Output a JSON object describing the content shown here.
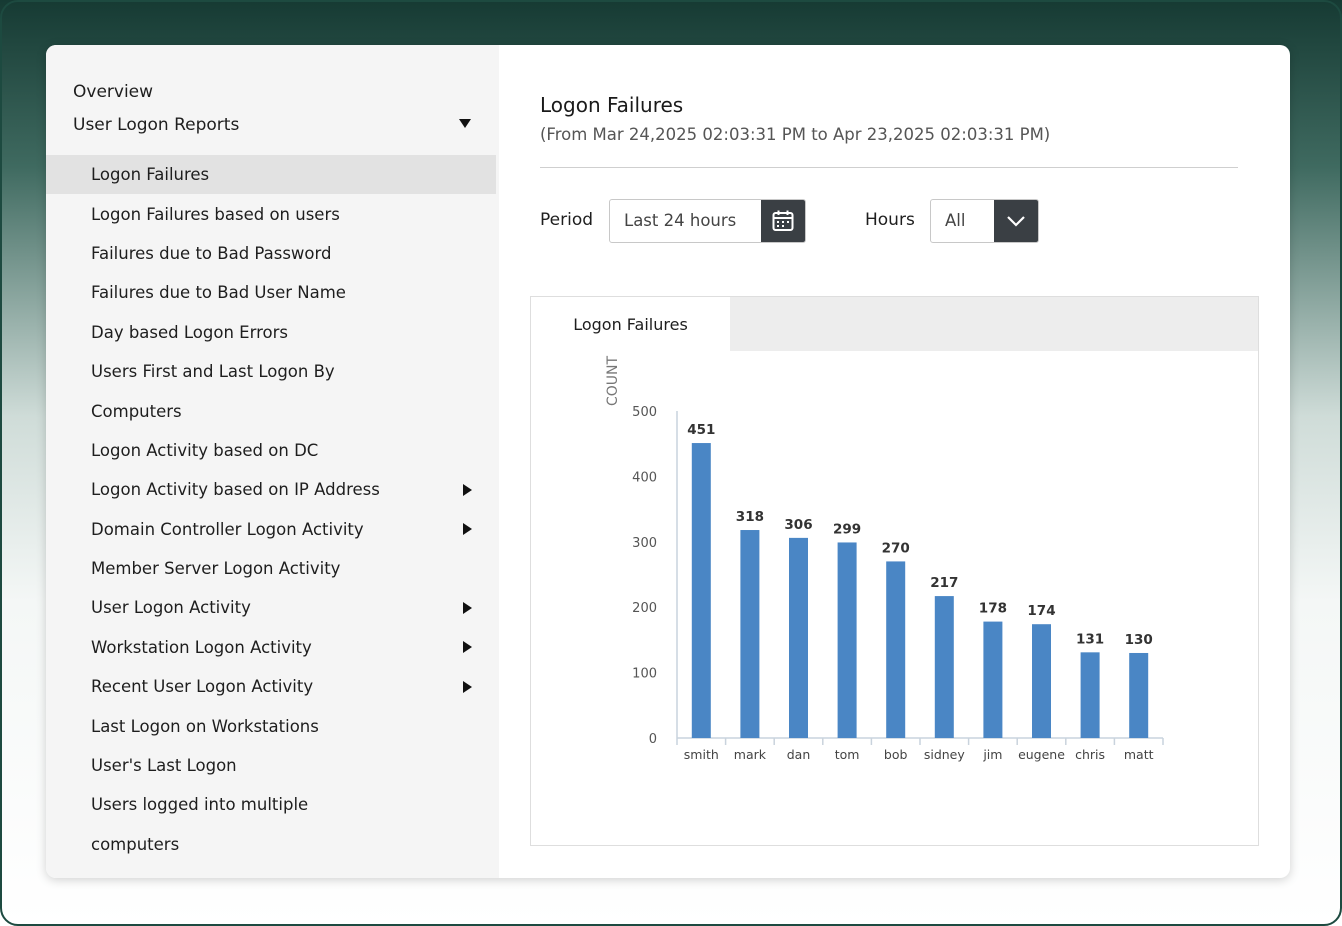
{
  "sidebar": {
    "overview": "Overview",
    "section": "User Logon Reports",
    "items": [
      {
        "label": "Logon Failures",
        "active": true,
        "submenu": false
      },
      {
        "label": "Logon Failures based on users",
        "submenu": false
      },
      {
        "label": "Failures due to Bad Password",
        "submenu": false
      },
      {
        "label": "Failures due to Bad User Name",
        "submenu": false
      },
      {
        "label": "Day based Logon Errors",
        "submenu": false
      },
      {
        "label": "Users First and Last Logon By",
        "submenu": false
      },
      {
        "label": "Computers",
        "submenu": false
      },
      {
        "label": "Logon Activity based on DC",
        "submenu": false
      },
      {
        "label": "Logon Activity based on IP Address",
        "submenu": true
      },
      {
        "label": "Domain Controller Logon Activity",
        "submenu": true
      },
      {
        "label": "Member Server Logon Activity",
        "submenu": false
      },
      {
        "label": "User Logon Activity",
        "submenu": true
      },
      {
        "label": "Workstation Logon Activity",
        "submenu": true
      },
      {
        "label": "Recent User Logon Activity",
        "submenu": true
      },
      {
        "label": "Last Logon on Workstations",
        "submenu": false
      },
      {
        "label": "User's Last Logon",
        "submenu": false
      },
      {
        "label": "Users logged into multiple",
        "submenu": false
      },
      {
        "label": "computers",
        "submenu": false
      }
    ]
  },
  "report": {
    "title": "Logon Failures",
    "range": "(From Mar 24,2025 02:03:31 PM to Apr 23,2025 02:03:31 PM)"
  },
  "filters": {
    "period_label": "Period",
    "period_value": "Last 24 hours",
    "hours_label": "Hours",
    "hours_value": "All"
  },
  "panel": {
    "tab_label": "Logon Failures"
  },
  "colors": {
    "bar": "#4a86c5",
    "button_dark": "#3a3f44"
  },
  "chart_data": {
    "type": "bar",
    "categories": [
      "smith",
      "mark",
      "dan",
      "tom",
      "bob",
      "sidney",
      "jim",
      "eugene",
      "chris",
      "matt"
    ],
    "values": [
      451,
      318,
      306,
      299,
      270,
      217,
      178,
      174,
      131,
      130
    ],
    "ylabel": "COUNT",
    "ylim": [
      0,
      500
    ],
    "yticks": [
      0,
      100,
      200,
      300,
      400,
      500
    ],
    "grid": false,
    "data_labels": true
  }
}
